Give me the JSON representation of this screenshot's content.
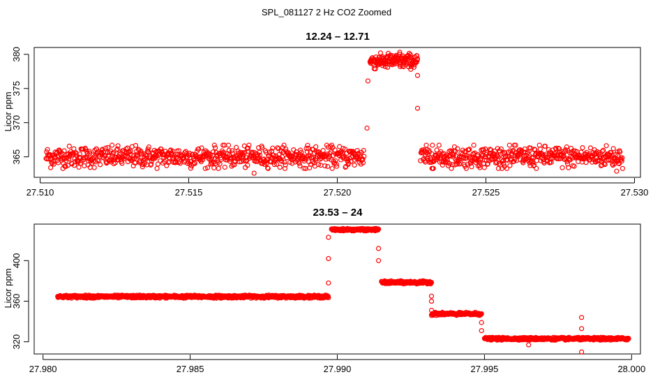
{
  "figure": {
    "title": "SPL_081127  2 Hz CO2 Zoomed"
  },
  "chart_data": [
    {
      "type": "scatter",
      "title": "12.24 – 12.71",
      "xlabel": "",
      "ylabel": "Licor ppm",
      "xlim": [
        27.5098,
        27.5302
      ],
      "ylim": [
        362.0,
        381.0
      ],
      "xticks": [
        27.51,
        27.515,
        27.52,
        27.525,
        27.53
      ],
      "xtick_labels": [
        "27.510",
        "27.515",
        "27.520",
        "27.525",
        "27.530"
      ],
      "yticks": [
        365,
        370,
        375,
        380
      ],
      "ytick_labels": [
        "365",
        "370",
        "375",
        "380"
      ],
      "marker": "open-circle",
      "marker_color": "#ff0000",
      "grid": false,
      "segments": [
        {
          "x_start": 27.5102,
          "x_end": 27.5209,
          "level": 365.0,
          "spread": 1.7,
          "n": 700
        },
        {
          "x_start": 27.5211,
          "x_end": 27.5227,
          "level": 379.0,
          "spread": 1.2,
          "n": 160
        },
        {
          "x_start": 27.5228,
          "x_end": 27.5296,
          "level": 365.0,
          "spread": 1.7,
          "n": 460
        }
      ],
      "points": [
        {
          "x": 27.521,
          "y": 369.2
        },
        {
          "x": 27.52103,
          "y": 376.1
        },
        {
          "x": 27.5227,
          "y": 376.9
        },
        {
          "x": 27.5227,
          "y": 372.1
        },
        {
          "x": 27.5172,
          "y": 362.6
        },
        {
          "x": 27.5232,
          "y": 366.7
        },
        {
          "x": 27.5221,
          "y": 380.3
        },
        {
          "x": 27.5294,
          "y": 362.9
        }
      ]
    },
    {
      "type": "scatter",
      "title": "23.53 – 24",
      "xlabel": "",
      "ylabel": "Licor ppm",
      "xlim": [
        27.9797,
        28.0003
      ],
      "ylim": [
        308,
        436
      ],
      "xticks": [
        27.98,
        27.985,
        27.99,
        27.995,
        28.0
      ],
      "xtick_labels": [
        "27.980",
        "27.985",
        "27.990",
        "27.995",
        "28.000"
      ],
      "yticks": [
        320,
        360,
        400
      ],
      "ytick_labels": [
        "320",
        "360",
        "400"
      ],
      "marker": "open-circle",
      "marker_color": "#ff0000",
      "grid": false,
      "segments": [
        {
          "x_start": 27.9805,
          "x_end": 27.9897,
          "level": 364.5,
          "spread": 1.5,
          "n": 900
        },
        {
          "x_start": 27.9898,
          "x_end": 27.9914,
          "level": 430.5,
          "spread": 1.2,
          "n": 160
        },
        {
          "x_start": 27.9915,
          "x_end": 27.9932,
          "level": 378.5,
          "spread": 1.5,
          "n": 170
        },
        {
          "x_start": 27.9932,
          "x_end": 27.9949,
          "level": 347.5,
          "spread": 1.5,
          "n": 170
        },
        {
          "x_start": 27.995,
          "x_end": 27.9999,
          "level": 323.0,
          "spread": 1.4,
          "n": 490
        }
      ],
      "points": [
        {
          "x": 27.9897,
          "y": 378.0
        },
        {
          "x": 27.9897,
          "y": 402.0
        },
        {
          "x": 27.9897,
          "y": 423.0
        },
        {
          "x": 27.9914,
          "y": 412.0
        },
        {
          "x": 27.9914,
          "y": 400.0
        },
        {
          "x": 27.9932,
          "y": 365.0
        },
        {
          "x": 27.9932,
          "y": 360.0
        },
        {
          "x": 27.9932,
          "y": 351.0
        },
        {
          "x": 27.9949,
          "y": 339.0
        },
        {
          "x": 27.9949,
          "y": 331.0
        },
        {
          "x": 27.9965,
          "y": 317.0
        },
        {
          "x": 27.9983,
          "y": 344.0
        },
        {
          "x": 27.9983,
          "y": 333.0
        },
        {
          "x": 27.9983,
          "y": 310.0
        }
      ]
    }
  ]
}
